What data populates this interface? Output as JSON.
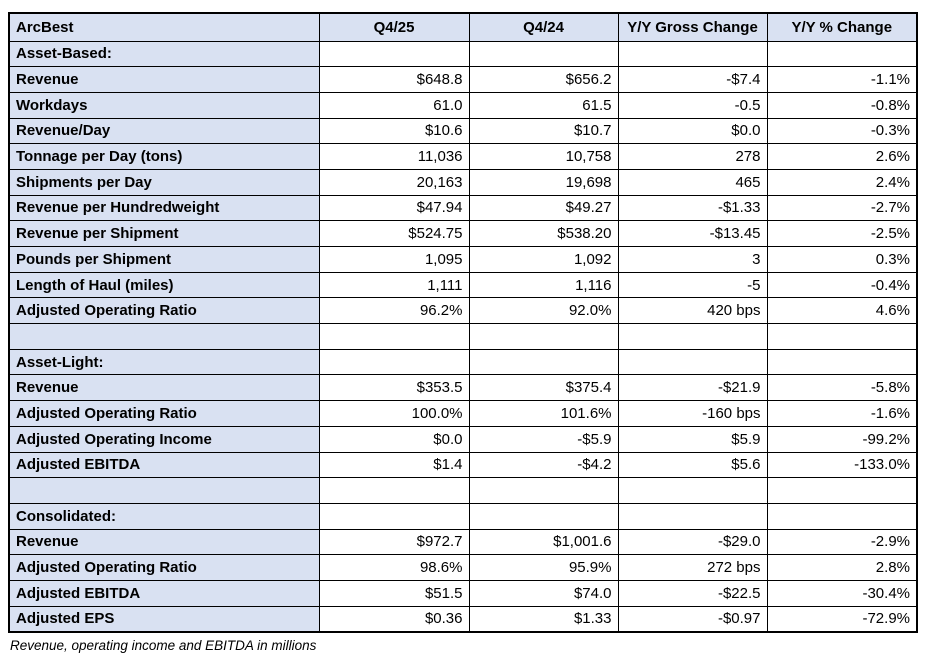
{
  "colors": {
    "header_fill": "#D9E1F2",
    "label_fill": "#D9E1F2",
    "border": "#000000",
    "text": "#000000",
    "background": "#FFFFFF"
  },
  "footnote": "Revenue, operating income and EBITDA in millions",
  "table": {
    "columns": [
      "ArcBest",
      "Q4/25",
      "Q4/24",
      "Y/Y Gross Change",
      "Y/Y % Change"
    ],
    "rows": [
      {
        "type": "section",
        "label": "Asset-Based:",
        "values": [
          "",
          "",
          "",
          ""
        ]
      },
      {
        "type": "data",
        "label": "Revenue",
        "values": [
          "$648.8",
          "$656.2",
          "-$7.4",
          "-1.1%"
        ]
      },
      {
        "type": "data",
        "label": "Workdays",
        "values": [
          "61.0",
          "61.5",
          "-0.5",
          "-0.8%"
        ]
      },
      {
        "type": "data",
        "label": "Revenue/Day",
        "values": [
          "$10.6",
          "$10.7",
          "$0.0",
          "-0.3%"
        ]
      },
      {
        "type": "data",
        "label": "Tonnage per Day (tons)",
        "values": [
          "11,036",
          "10,758",
          "278",
          "2.6%"
        ]
      },
      {
        "type": "data",
        "label": "Shipments per Day",
        "values": [
          "20,163",
          "19,698",
          "465",
          "2.4%"
        ]
      },
      {
        "type": "data",
        "label": "Revenue per Hundredweight",
        "values": [
          "$47.94",
          "$49.27",
          "-$1.33",
          "-2.7%"
        ]
      },
      {
        "type": "data",
        "label": "Revenue per Shipment",
        "values": [
          "$524.75",
          "$538.20",
          "-$13.45",
          "-2.5%"
        ]
      },
      {
        "type": "data",
        "label": "Pounds per Shipment",
        "values": [
          "1,095",
          "1,092",
          "3",
          "0.3%"
        ]
      },
      {
        "type": "data",
        "label": "Length of Haul (miles)",
        "values": [
          "1,111",
          "1,116",
          "-5",
          "-0.4%"
        ]
      },
      {
        "type": "data",
        "label": "Adjusted Operating Ratio",
        "values": [
          "96.2%",
          "92.0%",
          "420 bps",
          "4.6%"
        ]
      },
      {
        "type": "blank",
        "label": "",
        "values": [
          "",
          "",
          "",
          ""
        ]
      },
      {
        "type": "section",
        "label": "Asset-Light:",
        "values": [
          "",
          "",
          "",
          ""
        ]
      },
      {
        "type": "data",
        "label": "Revenue",
        "values": [
          "$353.5",
          "$375.4",
          "-$21.9",
          "-5.8%"
        ]
      },
      {
        "type": "data",
        "label": "Adjusted Operating Ratio",
        "values": [
          "100.0%",
          "101.6%",
          "-160 bps",
          "-1.6%"
        ]
      },
      {
        "type": "data",
        "label": "Adjusted Operating Income",
        "values": [
          "$0.0",
          "-$5.9",
          "$5.9",
          "-99.2%"
        ]
      },
      {
        "type": "data",
        "label": "Adjusted EBITDA",
        "values": [
          "$1.4",
          "-$4.2",
          "$5.6",
          "-133.0%"
        ]
      },
      {
        "type": "blank",
        "label": "",
        "values": [
          "",
          "",
          "",
          ""
        ]
      },
      {
        "type": "section",
        "label": "Consolidated:",
        "values": [
          "",
          "",
          "",
          ""
        ]
      },
      {
        "type": "data",
        "label": "Revenue",
        "values": [
          "$972.7",
          "$1,001.6",
          "-$29.0",
          "-2.9%"
        ]
      },
      {
        "type": "data",
        "label": "Adjusted Operating Ratio",
        "values": [
          "98.6%",
          "95.9%",
          "272 bps",
          "2.8%"
        ]
      },
      {
        "type": "data",
        "label": "Adjusted EBITDA",
        "values": [
          "$51.5",
          "$74.0",
          "-$22.5",
          "-30.4%"
        ]
      },
      {
        "type": "data",
        "label": "Adjusted EPS",
        "values": [
          "$0.36",
          "$1.33",
          "-$0.97",
          "-72.9%"
        ]
      }
    ]
  }
}
